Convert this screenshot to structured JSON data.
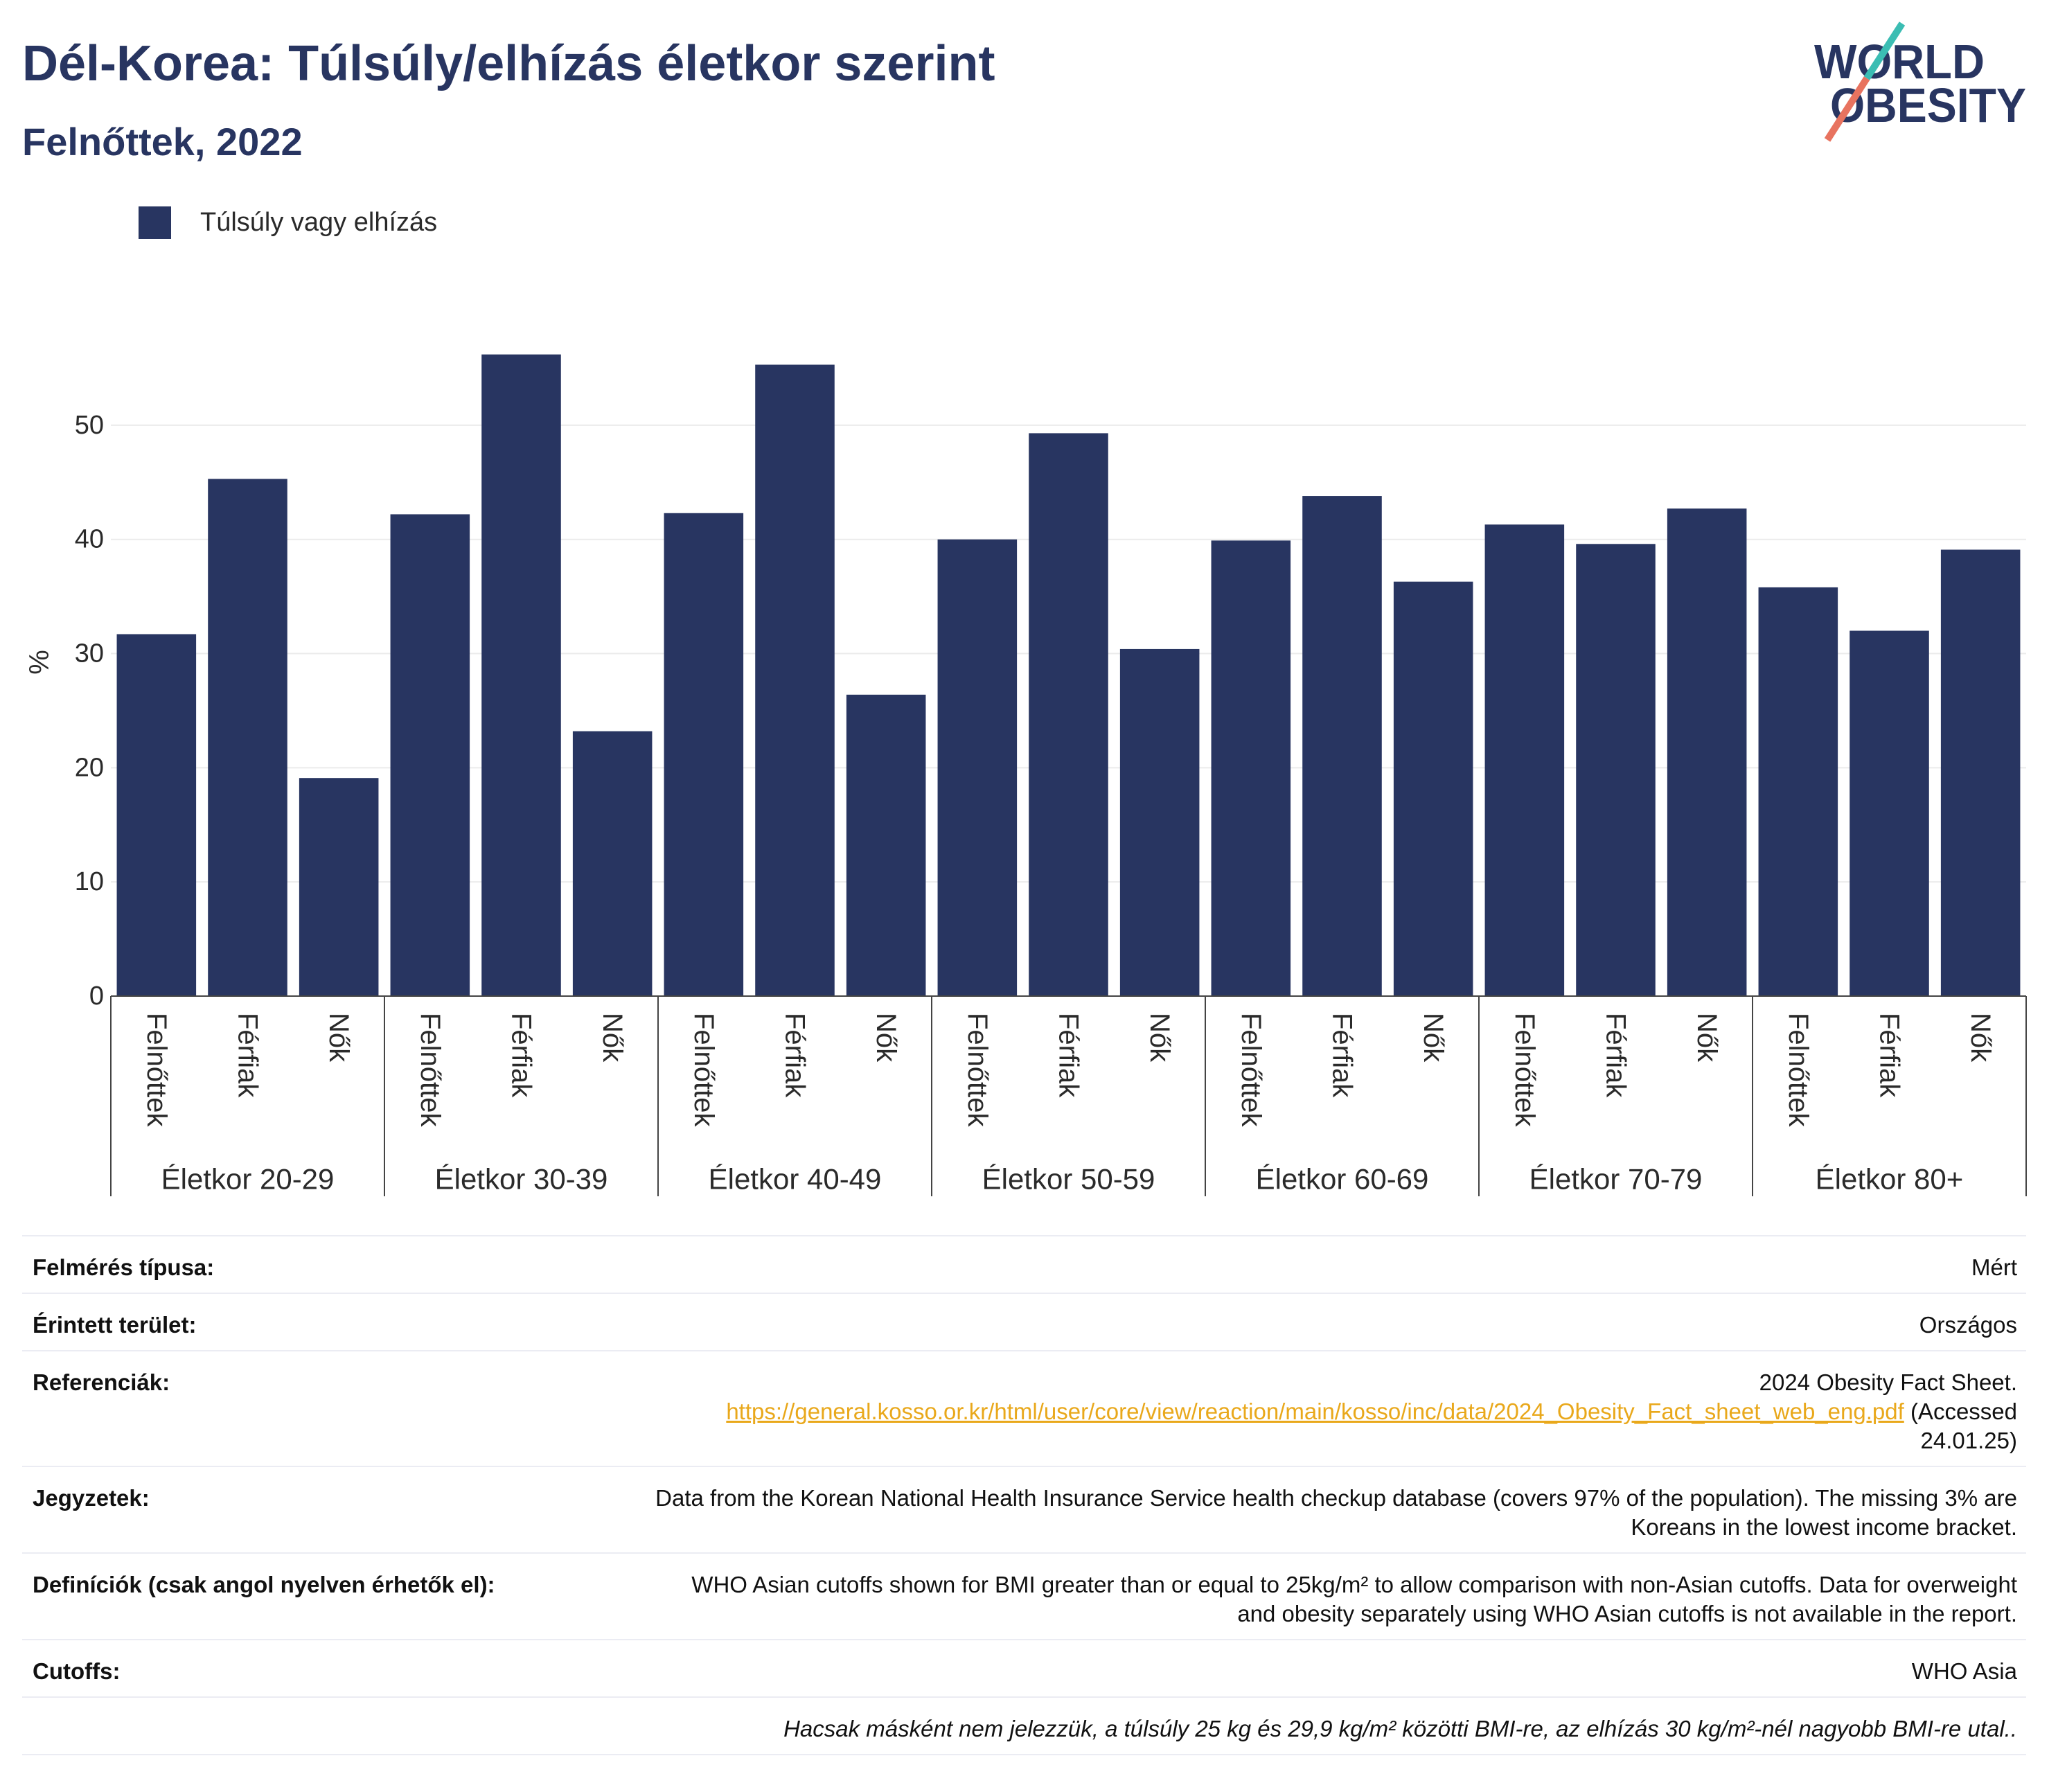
{
  "chart_data": {
    "type": "bar",
    "title": "Dél-Korea: Túlsúly/elhízás életkor szerint",
    "subtitle": "Felnőttek, 2022",
    "ylabel": "%",
    "ylim": [
      0,
      58
    ],
    "yticks": [
      0,
      10,
      20,
      30,
      40,
      50
    ],
    "grid": true,
    "legend": "top-left",
    "groups": [
      "Életkor 20-29",
      "Életkor 30-39",
      "Életkor 40-49",
      "Életkor 50-59",
      "Életkor 60-69",
      "Életkor 70-79",
      "Életkor 80+"
    ],
    "subcategories": [
      "Felnőttek",
      "Férfiak",
      "Nők"
    ],
    "series": [
      {
        "name": "Túlsúly vagy elhízás",
        "color": "#283561",
        "values": [
          31.7,
          45.3,
          19.1,
          42.2,
          56.2,
          23.2,
          42.3,
          55.3,
          26.4,
          40.0,
          49.3,
          30.4,
          39.9,
          43.8,
          36.3,
          41.3,
          39.6,
          42.7,
          35.8,
          32.0,
          39.1
        ]
      }
    ]
  },
  "logo": {
    "line1": "WORLD",
    "line2": "OBESITY",
    "colors": {
      "text": "#283561",
      "slash_top": "#3bbdb3",
      "slash_bottom": "#e8735f"
    }
  },
  "info": {
    "survey_type": {
      "label": "Felmérés típusa:",
      "value": "Mért"
    },
    "area": {
      "label": "Érintett terület:",
      "value": "Országos"
    },
    "references": {
      "label": "Referenciák:",
      "title": "2024 Obesity Fact Sheet.",
      "url": "https://general.kosso.or.kr/html/user/core/view/reaction/main/kosso/inc/data/2024_Obesity_Fact_sheet_web_eng.pdf",
      "accessed": "(Accessed\n24.01.25)"
    },
    "notes": {
      "label": "Jegyzetek:",
      "value": "Data from the Korean National Health Insurance Service health checkup database (covers 97% of the population). The missing 3% are\nKoreans in the lowest income bracket."
    },
    "definitions": {
      "label": "Definíciók (csak angol nyelven érhetők el):",
      "value": "WHO Asian cutoffs shown for BMI greater than or equal to 25kg/m² to allow comparison with non-Asian cutoffs. Data for overweight\nand obesity separately using WHO Asian cutoffs is not available in the report."
    },
    "cutoffs": {
      "label": "Cutoffs:",
      "value": "WHO Asia"
    },
    "footnote": "Hacsak másként nem jelezzük, a túlsúly 25 kg és 29,9 kg/m² közötti BMI-re, az elhízás 30 kg/m²-nél nagyobb BMI-re utal..",
    "link_color": "#e9a81b"
  }
}
